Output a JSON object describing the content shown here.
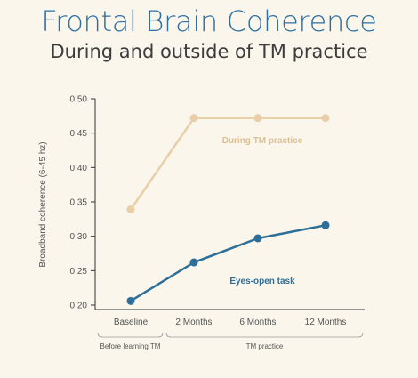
{
  "title": "Frontal Brain Coherence",
  "subtitle": "During and outside of TM practice",
  "colors": {
    "title": "#2e6fa3",
    "during": "#e8cfa8",
    "eyes_open": "#2e6f9a",
    "axis": "#333333",
    "text": "#555555"
  },
  "chart_data": {
    "type": "line",
    "title": "",
    "xlabel": "",
    "ylabel": "Broadband coherence (6-45 hz)",
    "categories": [
      "Baseline",
      "2 Months",
      "6 Months",
      "12 Months"
    ],
    "ylim": [
      0.2,
      0.5
    ],
    "yticks": [
      "0.20",
      "0.25",
      "0.30",
      "0.35",
      "0.40",
      "0.45",
      "0.50"
    ],
    "grid": false,
    "series": [
      {
        "name": "During TM practice",
        "values": [
          0.339,
          0.472,
          0.472,
          0.472
        ]
      },
      {
        "name": "Eyes-open task",
        "values": [
          0.206,
          0.262,
          0.297,
          0.316
        ]
      }
    ],
    "groups": [
      {
        "label": "Before learning TM",
        "categories": [
          "Baseline"
        ]
      },
      {
        "label": "TM practice",
        "categories": [
          "2 Months",
          "6 Months",
          "12 Months"
        ]
      }
    ]
  }
}
